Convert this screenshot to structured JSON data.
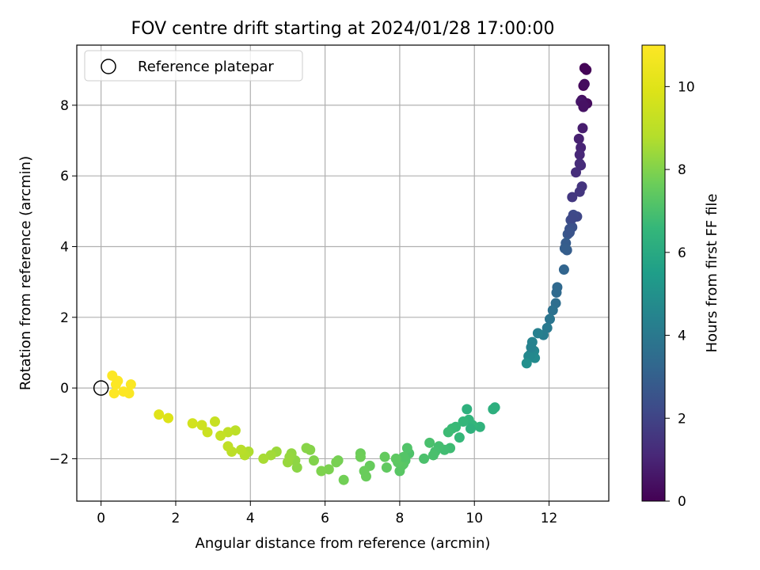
{
  "chart_data": {
    "type": "scatter",
    "title": "FOV centre drift starting at 2024/01/28 17:00:00",
    "xlabel": "Angular distance from reference (arcmin)",
    "ylabel": "Rotation from reference (arcmin)",
    "xlim": [
      -0.65,
      13.6
    ],
    "ylim": [
      -3.2,
      9.7
    ],
    "xticks": [
      0,
      2,
      4,
      6,
      8,
      10,
      12
    ],
    "yticks": [
      -2,
      0,
      2,
      4,
      6,
      8
    ],
    "grid": true,
    "legend": {
      "placement": "top-left",
      "entries": [
        "Reference platepar"
      ]
    },
    "reference_point": {
      "label": "Reference platepar",
      "x": 0,
      "y": 0
    },
    "colorbar": {
      "label": "Hours from first FF file",
      "colormap": "viridis",
      "range": [
        0,
        11
      ],
      "ticks": [
        0,
        2,
        4,
        6,
        8,
        10
      ]
    },
    "series": [
      {
        "x": [
          12.95,
          13.0,
          12.92,
          13.02,
          12.88,
          12.92,
          12.85,
          12.9,
          12.95,
          12.92,
          12.8,
          12.85,
          12.82,
          12.85,
          12.72,
          12.88,
          12.82,
          12.62,
          12.82,
          12.75,
          12.65,
          12.58,
          12.55,
          12.62,
          12.5,
          12.62,
          12.55,
          12.48,
          12.45,
          12.42,
          12.4,
          12.22,
          12.2,
          12.18,
          12.1,
          12.02,
          11.95,
          11.85,
          11.7,
          11.55,
          11.6,
          11.62,
          11.5,
          11.45,
          11.4,
          11.52,
          10.55,
          10.5,
          10.15,
          9.95,
          9.85,
          9.9,
          9.7,
          9.6,
          9.5,
          9.8,
          9.4,
          9.3,
          9.35,
          9.2,
          9.05,
          8.95,
          8.9,
          8.8,
          8.65,
          8.25,
          8.2,
          8.15,
          8.1,
          8.05,
          8.0,
          7.95,
          8.1,
          7.9,
          7.65,
          7.6,
          7.2,
          7.1,
          7.05,
          6.95,
          6.95,
          6.5,
          6.35,
          6.3,
          6.1,
          5.9,
          5.7,
          5.6,
          5.5,
          5.25,
          5.2,
          5.1,
          5.05,
          5.0,
          4.7,
          4.55,
          4.35,
          3.95,
          3.85,
          3.75,
          3.6,
          3.5,
          3.4,
          3.4,
          3.2,
          3.05,
          2.85,
          2.7,
          2.45,
          1.8,
          1.55,
          0.8,
          0.75,
          0.6,
          0.45,
          0.4,
          0.35,
          0.3
        ],
        "y": [
          9.05,
          9.0,
          8.55,
          8.05,
          8.15,
          7.95,
          8.1,
          7.35,
          8.6,
          8.0,
          7.05,
          6.8,
          6.6,
          6.3,
          6.1,
          5.7,
          6.35,
          5.4,
          5.55,
          4.85,
          4.9,
          4.75,
          4.5,
          4.55,
          4.35,
          4.8,
          4.4,
          3.9,
          4.1,
          3.95,
          3.35,
          2.85,
          2.7,
          2.4,
          2.2,
          1.95,
          1.7,
          1.5,
          1.55,
          1.3,
          1.05,
          0.85,
          0.95,
          0.9,
          0.7,
          1.15,
          -0.55,
          -0.6,
          -1.1,
          -1.05,
          -0.9,
          -1.15,
          -0.95,
          -1.4,
          -1.1,
          -0.6,
          -1.15,
          -1.25,
          -1.7,
          -1.75,
          -1.65,
          -1.8,
          -1.9,
          -1.55,
          -2.0,
          -1.85,
          -1.7,
          -2.05,
          -2.15,
          -2.2,
          -2.35,
          -2.1,
          -1.95,
          -2.0,
          -2.25,
          -1.95,
          -2.2,
          -2.5,
          -2.35,
          -1.85,
          -1.95,
          -2.6,
          -2.05,
          -2.1,
          -2.3,
          -2.35,
          -2.05,
          -1.75,
          -1.7,
          -2.25,
          -2.05,
          -1.85,
          -1.95,
          -2.1,
          -1.8,
          -1.9,
          -2.0,
          -1.8,
          -1.9,
          -1.75,
          -1.2,
          -1.8,
          -1.65,
          -1.25,
          -1.35,
          -0.95,
          -1.25,
          -1.05,
          -1.0,
          -0.85,
          -0.75,
          0.1,
          -0.15,
          -0.1,
          0.2,
          0.1,
          -0.15,
          0.35
        ],
        "hours": [
          0.05,
          0.1,
          0.2,
          0.3,
          0.4,
          0.5,
          0.6,
          0.8,
          0.3,
          0.45,
          0.9,
          1.0,
          1.1,
          1.2,
          1.3,
          1.5,
          1.25,
          1.6,
          1.55,
          2.1,
          2.2,
          2.3,
          2.5,
          2.45,
          2.7,
          2.15,
          2.55,
          2.9,
          2.85,
          2.95,
          3.2,
          3.35,
          3.4,
          3.55,
          3.7,
          3.85,
          4.0,
          4.15,
          4.3,
          4.45,
          4.55,
          4.7,
          4.6,
          4.65,
          4.9,
          4.4,
          6.2,
          6.25,
          6.4,
          6.5,
          6.45,
          6.35,
          6.55,
          6.6,
          6.65,
          6.3,
          6.7,
          6.75,
          6.8,
          6.85,
          6.9,
          6.95,
          7.0,
          7.0,
          7.05,
          7.1,
          7.15,
          7.2,
          7.25,
          7.3,
          7.3,
          7.35,
          7.2,
          7.4,
          7.45,
          7.5,
          7.55,
          7.6,
          7.6,
          7.65,
          7.7,
          7.75,
          7.8,
          7.85,
          7.9,
          7.95,
          8.0,
          8.05,
          8.1,
          8.15,
          8.2,
          8.25,
          8.3,
          8.35,
          8.4,
          8.5,
          8.6,
          8.7,
          8.8,
          8.9,
          9.0,
          9.0,
          9.1,
          9.1,
          9.2,
          9.3,
          9.4,
          9.5,
          9.6,
          9.9,
          10.0,
          10.9,
          10.9,
          10.95,
          11.0,
          10.95,
          11.0,
          10.95
        ]
      }
    ]
  }
}
